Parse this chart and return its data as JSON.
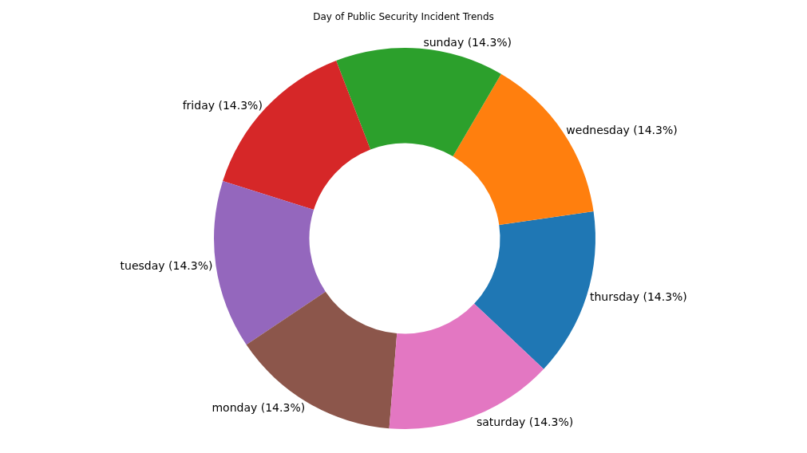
{
  "chart_data": {
    "type": "donut",
    "title": "Day of Public Security Incident Trends",
    "categories": [
      "thursday (14.3%)",
      "wednesday (14.3%)",
      "sunday (14.3%)",
      "friday (14.3%)",
      "tuesday (14.3%)",
      "monday (14.3%)",
      "saturday (14.3%)"
    ],
    "values": [
      14.3,
      14.3,
      14.3,
      14.3,
      14.3,
      14.3,
      14.3
    ],
    "colors": [
      "#1f77b4",
      "#ff7f0e",
      "#2ca02c",
      "#d62728",
      "#9467bd",
      "#8c564b",
      "#e377c2"
    ],
    "legend": false
  }
}
